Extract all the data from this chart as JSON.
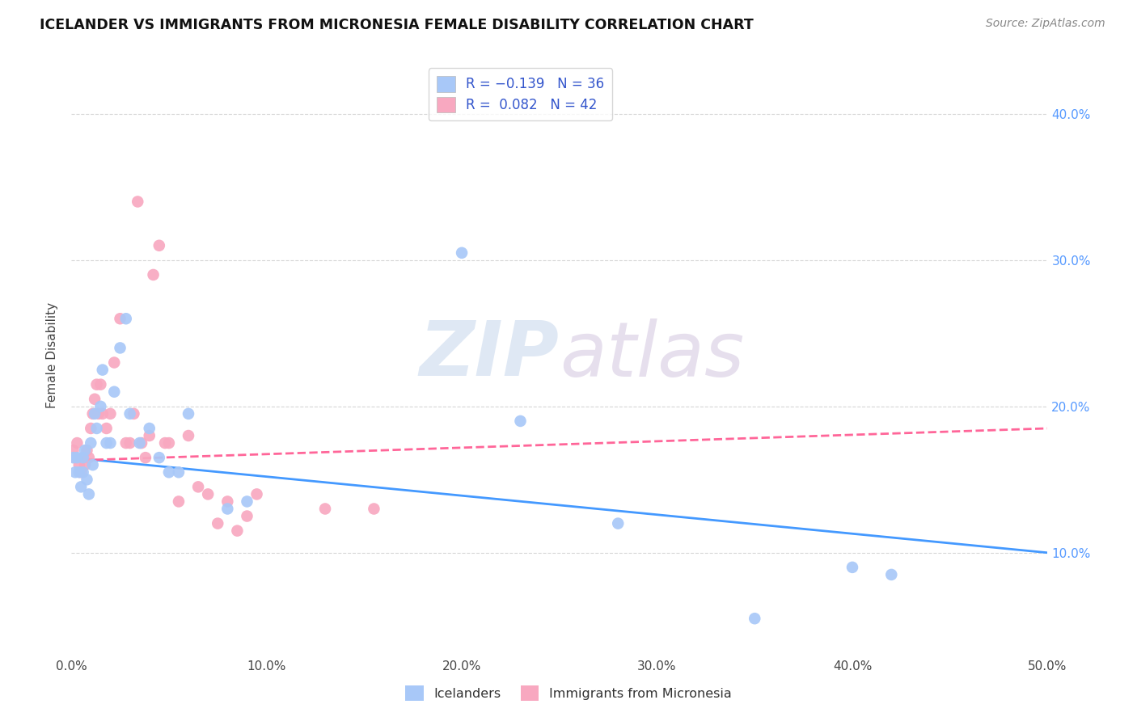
{
  "title": "ICELANDER VS IMMIGRANTS FROM MICRONESIA FEMALE DISABILITY CORRELATION CHART",
  "source": "Source: ZipAtlas.com",
  "xlabel_ticks": [
    "0.0%",
    "10.0%",
    "20.0%",
    "30.0%",
    "40.0%",
    "50.0%"
  ],
  "xlabel_vals": [
    0.0,
    0.1,
    0.2,
    0.3,
    0.4,
    0.5
  ],
  "ylabel_ticks": [
    "10.0%",
    "20.0%",
    "30.0%",
    "40.0%"
  ],
  "ylabel_vals": [
    0.1,
    0.2,
    0.3,
    0.4
  ],
  "xlim": [
    0.0,
    0.5
  ],
  "ylim": [
    0.03,
    0.44
  ],
  "legend_label1": "Icelanders",
  "legend_label2": "Immigrants from Micronesia",
  "r1": -0.139,
  "n1": 36,
  "r2": 0.082,
  "n2": 42,
  "color1": "#a8c8f8",
  "color2": "#f8a8c0",
  "trendline1_color": "#4499ff",
  "trendline2_color": "#ff6699",
  "watermark_zip": "ZIP",
  "watermark_atlas": "atlas",
  "watermark_color_zip": "#b8cce8",
  "watermark_color_atlas": "#c8b8d8",
  "icelanders_x": [
    0.001,
    0.002,
    0.003,
    0.004,
    0.005,
    0.006,
    0.006,
    0.007,
    0.008,
    0.009,
    0.01,
    0.011,
    0.012,
    0.013,
    0.015,
    0.016,
    0.018,
    0.02,
    0.022,
    0.025,
    0.028,
    0.03,
    0.035,
    0.04,
    0.045,
    0.05,
    0.055,
    0.06,
    0.08,
    0.09,
    0.2,
    0.23,
    0.28,
    0.35,
    0.4,
    0.42
  ],
  "icelanders_y": [
    0.165,
    0.155,
    0.165,
    0.155,
    0.145,
    0.165,
    0.155,
    0.17,
    0.15,
    0.14,
    0.175,
    0.16,
    0.195,
    0.185,
    0.2,
    0.225,
    0.175,
    0.175,
    0.21,
    0.24,
    0.26,
    0.195,
    0.175,
    0.185,
    0.165,
    0.155,
    0.155,
    0.195,
    0.13,
    0.135,
    0.305,
    0.19,
    0.12,
    0.055,
    0.09,
    0.085
  ],
  "micronesia_x": [
    0.001,
    0.002,
    0.003,
    0.004,
    0.005,
    0.006,
    0.007,
    0.008,
    0.009,
    0.01,
    0.011,
    0.012,
    0.013,
    0.014,
    0.015,
    0.016,
    0.018,
    0.02,
    0.022,
    0.025,
    0.028,
    0.03,
    0.032,
    0.034,
    0.036,
    0.038,
    0.04,
    0.042,
    0.045,
    0.048,
    0.05,
    0.055,
    0.06,
    0.065,
    0.07,
    0.075,
    0.08,
    0.085,
    0.09,
    0.095,
    0.13,
    0.155
  ],
  "micronesia_y": [
    0.17,
    0.165,
    0.175,
    0.16,
    0.155,
    0.165,
    0.16,
    0.17,
    0.165,
    0.185,
    0.195,
    0.205,
    0.215,
    0.195,
    0.215,
    0.195,
    0.185,
    0.195,
    0.23,
    0.26,
    0.175,
    0.175,
    0.195,
    0.34,
    0.175,
    0.165,
    0.18,
    0.29,
    0.31,
    0.175,
    0.175,
    0.135,
    0.18,
    0.145,
    0.14,
    0.12,
    0.135,
    0.115,
    0.125,
    0.14,
    0.13,
    0.13
  ],
  "trend1_x0": 0.0,
  "trend1_y0": 0.165,
  "trend1_x1": 0.5,
  "trend1_y1": 0.1,
  "trend2_x0": 0.0,
  "trend2_y0": 0.163,
  "trend2_x1": 0.5,
  "trend2_y1": 0.185
}
